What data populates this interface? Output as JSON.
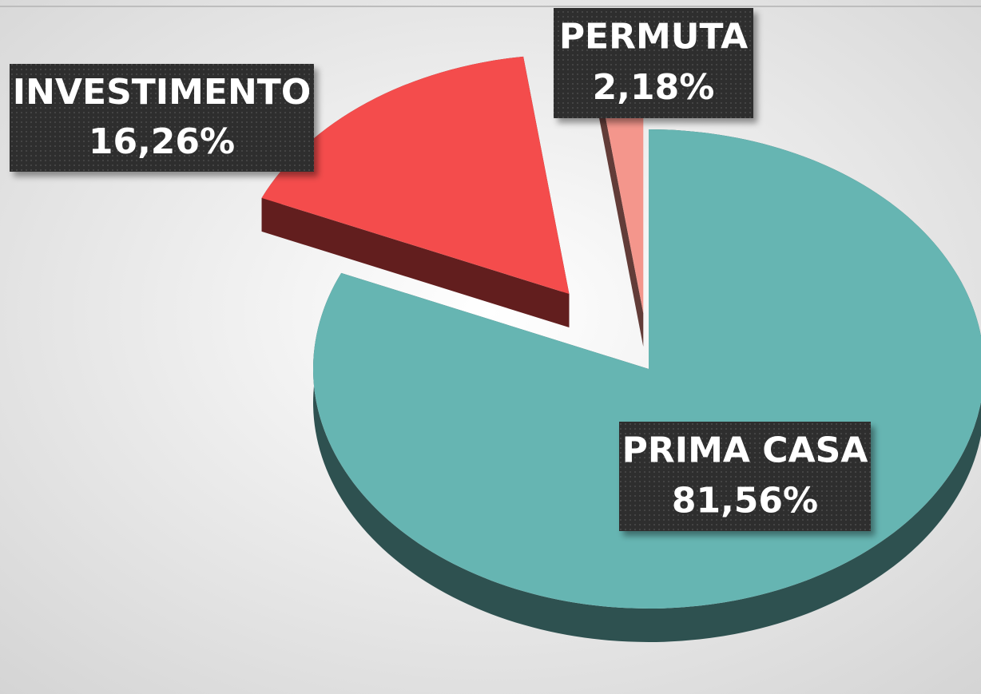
{
  "chart_data": {
    "type": "pie",
    "categories": [
      "PRIMA CASA",
      "INVESTIMENTO",
      "PERMUTA"
    ],
    "values": [
      81.56,
      16.26,
      2.18
    ],
    "value_labels": [
      "81,56%",
      "16,26%",
      "2,18%"
    ],
    "colors": [
      "#66b5b2",
      "#f44c4c",
      "#f4968c"
    ]
  }
}
